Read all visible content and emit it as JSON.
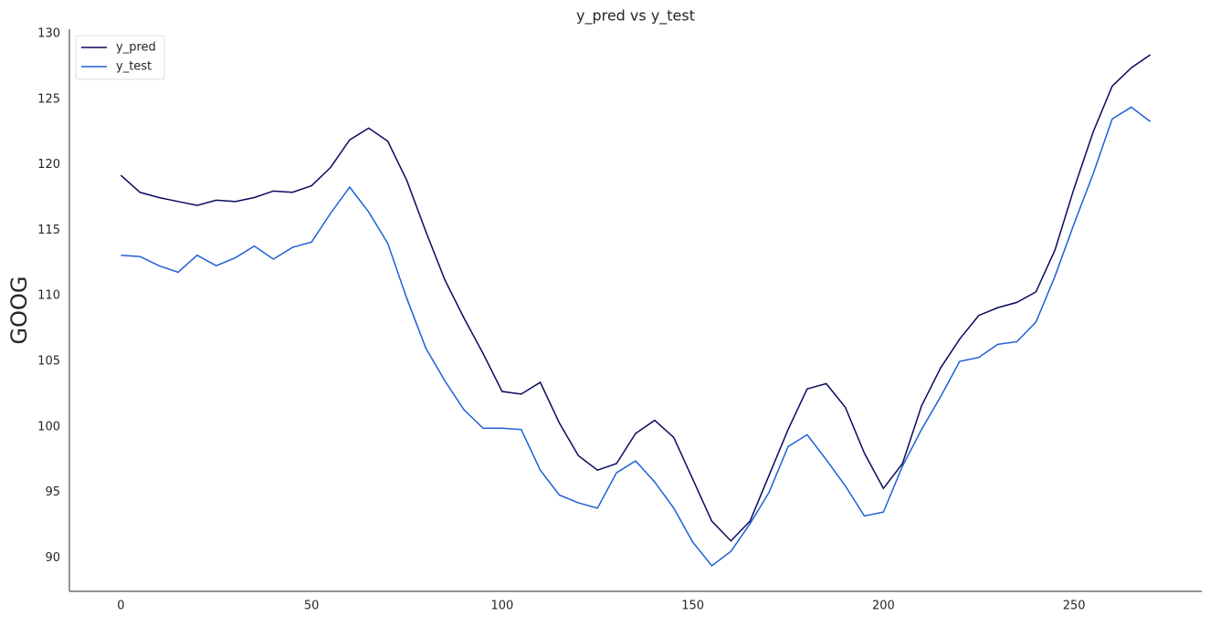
{
  "chart_data": {
    "type": "line",
    "title": "y_pred vs y_test",
    "ylabel": "GOOG",
    "x": [
      0,
      5,
      10,
      15,
      20,
      25,
      30,
      35,
      40,
      45,
      50,
      55,
      60,
      65,
      70,
      75,
      80,
      85,
      90,
      95,
      100,
      105,
      110,
      115,
      120,
      125,
      130,
      135,
      140,
      145,
      150,
      155,
      160,
      165,
      170,
      175,
      180,
      185,
      190,
      195,
      200,
      205,
      210,
      215,
      220,
      225,
      230,
      235,
      240,
      245,
      250,
      255,
      260,
      265,
      270
    ],
    "series": [
      {
        "name": "y_pred",
        "color": "#0a0a5e",
        "values": [
          119.2,
          117.9,
          117.5,
          117.2,
          116.9,
          117.3,
          117.2,
          117.5,
          118.0,
          117.9,
          118.4,
          119.8,
          121.9,
          122.8,
          121.8,
          118.8,
          114.9,
          111.2,
          108.3,
          105.6,
          102.7,
          102.5,
          103.4,
          100.3,
          97.8,
          96.7,
          97.2,
          99.5,
          100.5,
          99.2,
          96.0,
          92.8,
          91.3,
          92.8,
          96.3,
          99.8,
          102.9,
          103.3,
          101.5,
          98.0,
          95.3,
          97.2,
          101.6,
          104.5,
          106.7,
          108.5,
          109.1,
          109.5,
          110.3,
          113.5,
          118.2,
          122.5,
          126.0,
          127.4,
          128.4
        ]
      },
      {
        "name": "y_test",
        "color": "#1f5fd6",
        "values": [
          113.1,
          113.0,
          112.3,
          111.8,
          113.1,
          112.3,
          112.9,
          113.8,
          112.8,
          113.7,
          114.1,
          116.3,
          118.3,
          116.4,
          114.0,
          109.8,
          106.0,
          103.5,
          101.3,
          99.9,
          99.9,
          99.8,
          96.7,
          94.8,
          94.2,
          93.8,
          96.5,
          97.4,
          95.8,
          93.8,
          91.2,
          89.4,
          90.5,
          92.6,
          95.0,
          98.5,
          99.4,
          97.5,
          95.5,
          93.2,
          93.5,
          97.0,
          99.8,
          102.3,
          105.0,
          105.3,
          106.3,
          106.5,
          108.0,
          111.5,
          115.5,
          119.3,
          123.5,
          124.4,
          123.3
        ]
      }
    ],
    "xlim": [
      -13.5,
      283.5
    ],
    "xticks": [
      0,
      50,
      100,
      150,
      200,
      250
    ],
    "ylim": [
      87.45,
      130.35
    ],
    "yticks": [
      90,
      95,
      100,
      105,
      110,
      115,
      120,
      125,
      130
    ],
    "grid": false,
    "legend": "upper-left"
  }
}
